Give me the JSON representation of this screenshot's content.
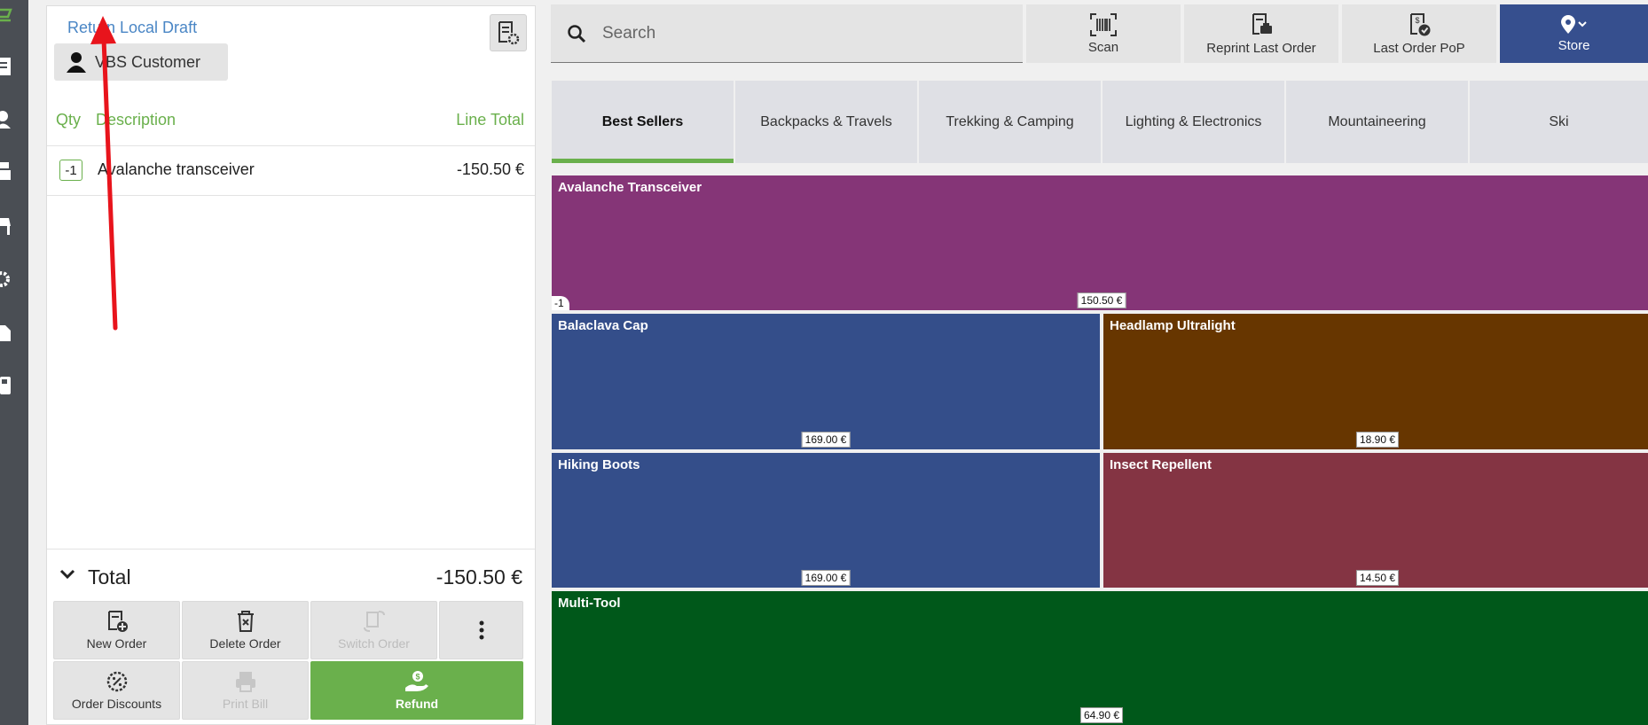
{
  "ticket": {
    "title": "Return Local Draft",
    "customer": "VBS Customer",
    "columns": {
      "qty": "Qty",
      "description": "Description",
      "line_total": "Line Total"
    },
    "lines": [
      {
        "qty": "-1",
        "description": "Avalanche transceiver",
        "total": "-150.50 €"
      }
    ],
    "total_label": "Total",
    "total_value": "-150.50 €"
  },
  "actions": {
    "new_order": "New Order",
    "delete_order": "Delete Order",
    "switch_order": "Switch Order",
    "order_discounts": "Order Discounts",
    "print_bill": "Print Bill",
    "refund": "Refund"
  },
  "toolbar": {
    "search_placeholder": "Search",
    "scan": "Scan",
    "reprint": "Reprint Last Order",
    "last_order_pop": "Last Order PoP",
    "store": "Store"
  },
  "tabs": [
    "Best Sellers",
    "Backpacks & Travels",
    "Trekking & Camping",
    "Lighting & Electronics",
    "Mountaineering",
    "Ski"
  ],
  "active_tab": "Best Sellers",
  "products": [
    {
      "name": "Avalanche Transceiver",
      "price": "150.50 €",
      "qty": "-1",
      "color": "#853577"
    },
    {
      "name": "Balaclava Cap",
      "price": "169.00 €",
      "color": "#344e8a"
    },
    {
      "name": "Headlamp Ultralight",
      "price": "18.90 €",
      "color": "#673600"
    },
    {
      "name": "Hiking Boots",
      "price": "169.00 €",
      "color": "#344e8a"
    },
    {
      "name": "Insect Repellent",
      "price": "14.50 €",
      "color": "#843443"
    },
    {
      "name": "Multi-Tool",
      "price": "64.90 €",
      "color": "#00581a"
    }
  ],
  "colors": {
    "accent": "#6ab04c",
    "store": "#364f8e",
    "link": "#4a86c5"
  }
}
